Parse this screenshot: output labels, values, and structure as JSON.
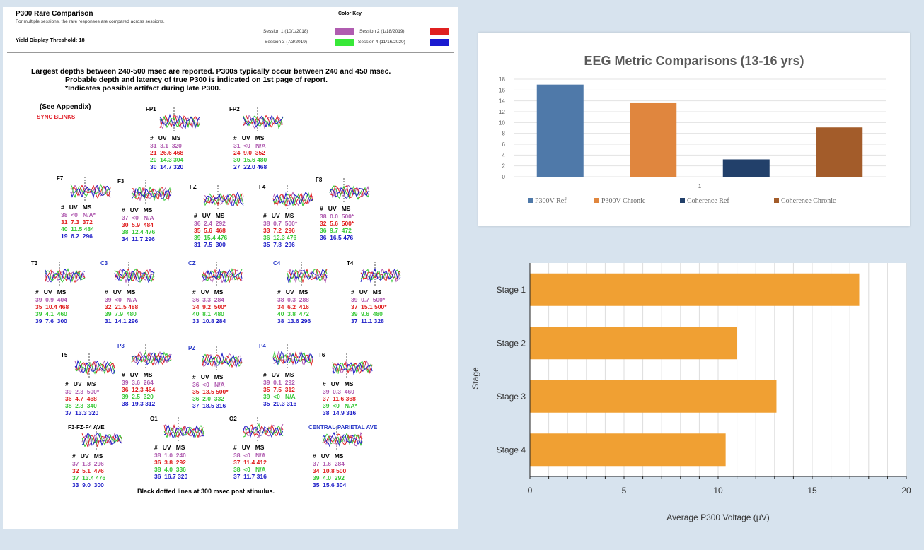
{
  "report": {
    "title": "P300 Rare Comparison",
    "subtitle": "For multiple sessions, the rare responses are compared across sessions.",
    "threshold": "Yield Display Threshold: 18",
    "color_key_title": "Color Key",
    "sessions": [
      {
        "label": "Session 1 (10/1/2018)",
        "color": "#b05cb0"
      },
      {
        "label": "Session 2 (1/18/2019)",
        "color": "#e02020"
      },
      {
        "label": "Session 3 (7/3/2019)",
        "color": "#38e838"
      },
      {
        "label": "Session 4 (11/16/2020)",
        "color": "#1a1ad0"
      }
    ],
    "notes": [
      "Largest depths between 240-500 msec are reported. P300s typically occur between 240 and 450 msec.",
      "Probable depth and latency of true P300 is indicated on 1st page of report.",
      "*Indicates possible artifact during late P300."
    ],
    "see_appendix": "(See Appendix)",
    "sync_blinks": "SYNC BLINKS",
    "dotted_note": "Black dotted lines at 300 msec post stimulus.",
    "table_header": "#   UV   MS",
    "electrodes": [
      {
        "name": "FP1",
        "rows": [
          "31  3.1  320",
          "21  26.6 468",
          "20  14.3 304",
          "30  14.7 320"
        ]
      },
      {
        "name": "FP2",
        "rows": [
          "31  <0   N/A",
          "24  9.0  352",
          "30  15.6 480",
          "27  22.0 468"
        ]
      },
      {
        "name": "F7",
        "rows": [
          "38  <0   N/A*",
          "31  7.3  372",
          "40  11.5 484",
          "19  6.2  296"
        ]
      },
      {
        "name": "F3",
        "rows": [
          "37  <0   N/A",
          "30  5.9  484",
          "38  12.4 476",
          "34  11.7 296"
        ]
      },
      {
        "name": "FZ",
        "rows": [
          "36  2.4  292",
          "35  5.6  468",
          "39  15.4 476",
          "31  7.5  300"
        ]
      },
      {
        "name": "F4",
        "rows": [
          "38  0.7  500*",
          "33  7.2  296",
          "36  12.3 476",
          "35  7.8  296"
        ]
      },
      {
        "name": "F8",
        "rows": [
          "38  0.0  500*",
          "32  5.6  500*",
          "36  9.7  472",
          "36  16.5 476"
        ]
      },
      {
        "name": "T3",
        "rows": [
          "39  0.9  404",
          "35  10.4 468",
          "39  4.1  460",
          "39  7.6  300"
        ]
      },
      {
        "name": "C3",
        "rows": [
          "39  <0   N/A",
          "32  21.5 488",
          "39  7.9  480",
          "31  14.1 296"
        ]
      },
      {
        "name": "CZ",
        "rows": [
          "36  3.3  284",
          "34  9.2  500*",
          "40  8.1  480",
          "33  10.8 284"
        ]
      },
      {
        "name": "C4",
        "rows": [
          "38  0.3  288",
          "34  6.2  416",
          "40  3.8  472",
          "38  13.6 296"
        ]
      },
      {
        "name": "T4",
        "rows": [
          "39  0.7  500*",
          "37  15.1 500*",
          "39  9.6  480",
          "37  11.1 328"
        ]
      },
      {
        "name": "T5",
        "rows": [
          "39  2.3  500*",
          "36  4.7  468",
          "38  2.3  340",
          "37  13.3 320"
        ]
      },
      {
        "name": "P3",
        "rows": [
          "39  3.6  264",
          "36  12.3 464",
          "39  2.5  320",
          "38  19.3 312"
        ]
      },
      {
        "name": "PZ",
        "rows": [
          "36  <0   N/A",
          "35  13.5 500*",
          "36  2.0  332",
          "37  18.5 316"
        ]
      },
      {
        "name": "P4",
        "rows": [
          "39  0.1  292",
          "35  7.5  312",
          "39  <0   N/A",
          "35  20.3 316"
        ]
      },
      {
        "name": "T6",
        "rows": [
          "39  0.3  460",
          "37  11.6 368",
          "39  <0   N/A*",
          "38  14.9 316"
        ]
      },
      {
        "name": "F3-FZ-F4 AVE",
        "rows": [
          "37  1.3  296",
          "32  5.1  476",
          "37  13.4 476",
          "33  9.0  300"
        ]
      },
      {
        "name": "O1",
        "rows": [
          "38  1.0  240",
          "36  3.8  292",
          "38  4.0  336",
          "36  16.7 320"
        ]
      },
      {
        "name": "O2",
        "rows": [
          "38  <0   N/A",
          "37  11.4 412",
          "38  <0   N/A",
          "37  11.7 316"
        ]
      },
      {
        "name": "CENTRAL-PARIETAL AVE",
        "rows": [
          "37  1.6  284",
          "34  10.8 500",
          "39  4.0  292",
          "35  15.6 304"
        ]
      }
    ]
  },
  "chart_data": [
    {
      "type": "bar",
      "title": "EEG Metric Comparisons (13-16 yrs)",
      "categories": [
        "1"
      ],
      "series": [
        {
          "name": "P300V Ref",
          "values": [
            17
          ],
          "color": "#4f79a9"
        },
        {
          "name": "P300V Chronic",
          "values": [
            13.7
          ],
          "color": "#e0863e"
        },
        {
          "name": "Coherence Ref",
          "values": [
            3.2
          ],
          "color": "#22406a"
        },
        {
          "name": "Coherence Chronic",
          "values": [
            9.1
          ],
          "color": "#a35c2a"
        }
      ],
      "yticks": [
        "0",
        "2",
        "4",
        "6",
        "8",
        "10",
        "12",
        "14",
        "16",
        "18"
      ],
      "ylim": [
        0,
        18
      ],
      "grid": true,
      "legend": "bottom"
    },
    {
      "type": "bar",
      "orientation": "horizontal",
      "categories": [
        "Stage 1",
        "Stage 2",
        "Stage 3",
        "Stage 4"
      ],
      "values": [
        17.5,
        11,
        13.1,
        10.4
      ],
      "color": "#f0a033",
      "xlabel": "Average P300 Voltage (μV)",
      "ylabel": "Stage",
      "xticks": [
        "0",
        "5",
        "10",
        "15",
        "20"
      ],
      "xlim": [
        0,
        20
      ],
      "grid": true
    }
  ]
}
